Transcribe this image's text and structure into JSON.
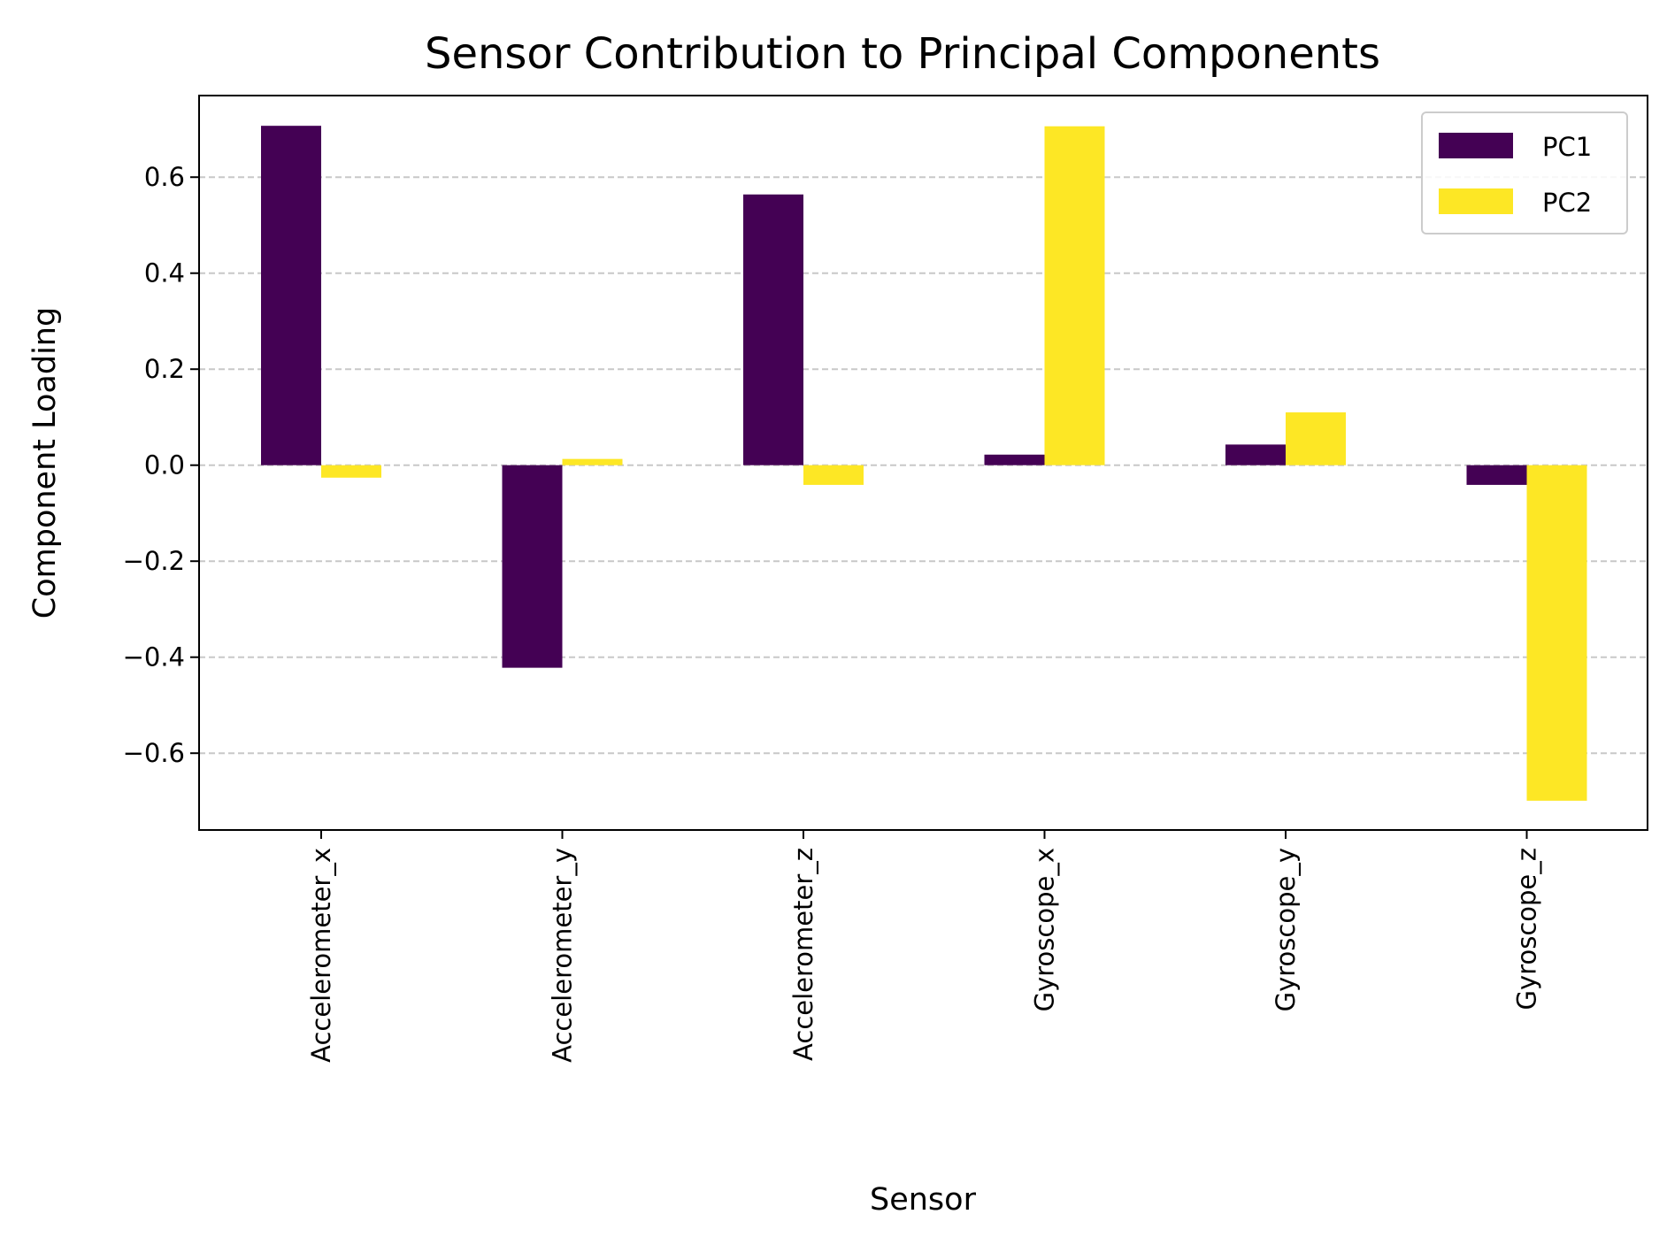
{
  "chart_data": {
    "type": "bar",
    "title": "Sensor Contribution to Principal Components",
    "xlabel": "Sensor",
    "ylabel": "Component Loading",
    "categories": [
      "Accelerometer_x",
      "Accelerometer_y",
      "Accelerometer_z",
      "Gyroscope_x",
      "Gyroscope_y",
      "Gyroscope_z"
    ],
    "series": [
      {
        "name": "PC1",
        "color": "#440154",
        "values": [
          0.707,
          -0.422,
          0.564,
          0.022,
          0.043,
          -0.041
        ]
      },
      {
        "name": "PC2",
        "color": "#fde725",
        "values": [
          -0.026,
          0.013,
          -0.041,
          0.706,
          0.11,
          -0.699
        ]
      }
    ],
    "ylim": [
      -0.76,
      0.77
    ],
    "yticks": [
      -0.6,
      -0.4,
      -0.2,
      0.0,
      0.2,
      0.4,
      0.6
    ],
    "ytick_labels": [
      "−0.6",
      "−0.4",
      "−0.2",
      "0.0",
      "0.2",
      "0.4",
      "0.6"
    ],
    "grid": "y-dashed",
    "legend": "top-right"
  }
}
